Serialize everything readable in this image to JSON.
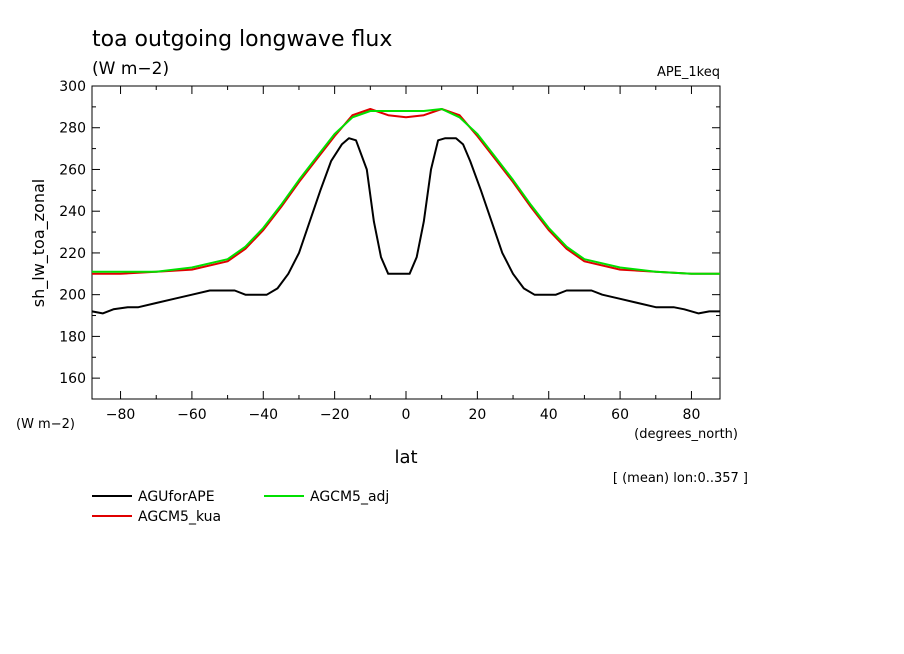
{
  "chart_data": {
    "type": "line",
    "title": "toa outgoing longwave flux",
    "subtitle": "(W m−2)",
    "run_label": "APE_1keq",
    "ylabel": "sh_lw_toa_zonal",
    "yunits": "(W m−2)",
    "xlabel": "lat",
    "xunits": "(degrees_north)",
    "footnote": "[ (mean) lon:0..357 ]",
    "xlim": [
      -88,
      88
    ],
    "ylim": [
      150,
      300
    ],
    "xticks": [
      -80,
      -60,
      -40,
      -20,
      0,
      20,
      40,
      60,
      80
    ],
    "yticks": [
      160,
      180,
      200,
      220,
      240,
      260,
      280,
      300
    ],
    "grid": false,
    "legend_position": "below",
    "series": [
      {
        "name": "AGUforAPE",
        "color": "#000000",
        "x": [
          -88,
          -85,
          -82,
          -78,
          -75,
          -70,
          -65,
          -60,
          -55,
          -52,
          -48,
          -45,
          -42,
          -39,
          -36,
          -33,
          -30,
          -27,
          -24,
          -21,
          -18,
          -16,
          -14,
          -11,
          -9,
          -7,
          -5,
          -3,
          -1,
          1,
          3,
          5,
          7,
          9,
          11,
          14,
          16,
          18,
          21,
          24,
          27,
          30,
          33,
          36,
          39,
          42,
          45,
          48,
          52,
          55,
          60,
          65,
          70,
          75,
          78,
          82,
          85,
          88
        ],
        "y": [
          192,
          191,
          193,
          194,
          194,
          196,
          198,
          200,
          202,
          202,
          202,
          200,
          200,
          200,
          203,
          210,
          220,
          235,
          250,
          264,
          272,
          275,
          274,
          260,
          235,
          218,
          210,
          210,
          210,
          210,
          218,
          235,
          260,
          274,
          275,
          275,
          272,
          264,
          250,
          235,
          220,
          210,
          203,
          200,
          200,
          200,
          202,
          202,
          202,
          200,
          198,
          196,
          194,
          194,
          193,
          191,
          192,
          192
        ]
      },
      {
        "name": "AGCM5_kua",
        "color": "#e00000",
        "x": [
          -88,
          -80,
          -70,
          -60,
          -50,
          -45,
          -40,
          -35,
          -30,
          -25,
          -20,
          -15,
          -10,
          -5,
          0,
          5,
          10,
          15,
          20,
          25,
          30,
          35,
          40,
          45,
          50,
          60,
          70,
          80,
          88
        ],
        "y": [
          210,
          210,
          211,
          212,
          216,
          222,
          231,
          242,
          254,
          265,
          276,
          286,
          289,
          286,
          285,
          286,
          289,
          286,
          276,
          265,
          254,
          242,
          231,
          222,
          216,
          212,
          211,
          210,
          210
        ]
      },
      {
        "name": "AGCM5_adj",
        "color": "#00e000",
        "x": [
          -88,
          -80,
          -70,
          -60,
          -50,
          -45,
          -40,
          -35,
          -30,
          -25,
          -20,
          -15,
          -10,
          -5,
          0,
          5,
          10,
          15,
          20,
          25,
          30,
          35,
          40,
          45,
          50,
          60,
          70,
          80,
          88
        ],
        "y": [
          211,
          211,
          211,
          213,
          217,
          223,
          232,
          243,
          255,
          266,
          277,
          285,
          288,
          288,
          288,
          288,
          289,
          285,
          277,
          266,
          255,
          243,
          232,
          223,
          217,
          213,
          211,
          210,
          210
        ]
      }
    ]
  }
}
